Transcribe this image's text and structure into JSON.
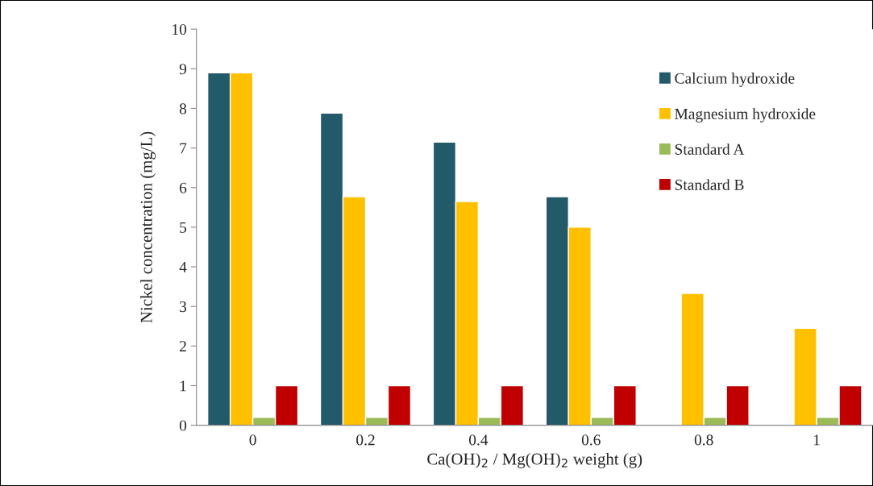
{
  "chart_data": {
    "type": "bar",
    "xlabel": "Ca(OH)$_{2}$ / Mg(OH)$_{2}$ weight (g)",
    "ylabel": "Nickel concentration (mg/L)",
    "categories": [
      "0",
      "0.2",
      "0.4",
      "0.6",
      "0.8",
      "1"
    ],
    "series": [
      {
        "name": "Calcium hydroxide",
        "color": "#235a6a",
        "values": [
          8.9,
          7.88,
          7.15,
          5.77,
          null,
          null
        ]
      },
      {
        "name": "Magnesium hydroxide",
        "color": "#ffc000",
        "values": [
          8.9,
          5.77,
          5.65,
          5.0,
          3.33,
          2.45
        ]
      },
      {
        "name": "Standard A",
        "color": "#9bbb59",
        "values": [
          0.2,
          0.2,
          0.2,
          0.2,
          0.2,
          0.2
        ]
      },
      {
        "name": "Standard B",
        "color": "#c00000",
        "values": [
          1.0,
          1.0,
          1.0,
          1.0,
          1.0,
          1.0
        ]
      }
    ],
    "ylim": [
      0,
      10
    ],
    "yticks": [
      0,
      1,
      2,
      3,
      4,
      5,
      6,
      7,
      8,
      9,
      10
    ],
    "grid": false,
    "legend": "top right"
  }
}
